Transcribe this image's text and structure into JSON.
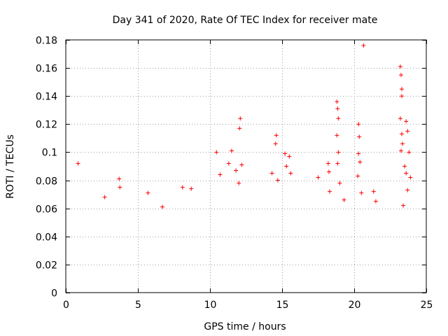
{
  "chart_data": {
    "type": "scatter",
    "title": "Day 341 of 2020, Rate Of TEC Index for receiver mate",
    "xlabel": "GPS time / hours",
    "ylabel": "ROTI / TECUs",
    "xlim": [
      0,
      25
    ],
    "ylim": [
      0,
      0.18
    ],
    "xticks": [
      0,
      5,
      10,
      15,
      20,
      25
    ],
    "xtick_labels": [
      "0",
      "5",
      "10",
      "15",
      "20",
      "25"
    ],
    "yticks": [
      0,
      0.02,
      0.04,
      0.06,
      0.08,
      0.1,
      0.12,
      0.14,
      0.16,
      0.18
    ],
    "ytick_labels": [
      "0",
      "0.02",
      "0.04",
      "0.06",
      "0.08",
      "0.1",
      "0.12",
      "0.14",
      "0.16",
      "0.18"
    ],
    "grid": true,
    "marker": "+",
    "color": "#ff0000",
    "series": [
      {
        "points": [
          [
            0.85,
            0.092
          ],
          [
            2.7,
            0.068
          ],
          [
            3.7,
            0.081
          ],
          [
            3.75,
            0.075
          ],
          [
            5.7,
            0.071
          ],
          [
            6.7,
            0.061
          ],
          [
            8.1,
            0.075
          ],
          [
            8.7,
            0.074
          ],
          [
            10.45,
            0.1
          ],
          [
            10.7,
            0.084
          ],
          [
            11.5,
            0.101
          ],
          [
            11.3,
            0.092
          ],
          [
            11.8,
            0.087
          ],
          [
            12.1,
            0.124
          ],
          [
            12.05,
            0.117
          ],
          [
            12.2,
            0.091
          ],
          [
            12.0,
            0.078
          ],
          [
            14.3,
            0.085
          ],
          [
            14.6,
            0.112
          ],
          [
            14.55,
            0.106
          ],
          [
            14.7,
            0.08
          ],
          [
            15.2,
            0.099
          ],
          [
            15.3,
            0.09
          ],
          [
            15.5,
            0.097
          ],
          [
            15.6,
            0.085
          ],
          [
            17.5,
            0.082
          ],
          [
            18.2,
            0.092
          ],
          [
            18.25,
            0.086
          ],
          [
            18.3,
            0.072
          ],
          [
            18.8,
            0.136
          ],
          [
            18.85,
            0.131
          ],
          [
            18.9,
            0.124
          ],
          [
            18.8,
            0.112
          ],
          [
            18.9,
            0.1
          ],
          [
            18.85,
            0.092
          ],
          [
            19.0,
            0.078
          ],
          [
            19.3,
            0.066
          ],
          [
            20.3,
            0.12
          ],
          [
            20.35,
            0.111
          ],
          [
            20.3,
            0.099
          ],
          [
            20.4,
            0.093
          ],
          [
            20.25,
            0.083
          ],
          [
            20.5,
            0.071
          ],
          [
            20.65,
            0.176
          ],
          [
            21.35,
            0.072
          ],
          [
            21.5,
            0.065
          ],
          [
            23.2,
            0.161
          ],
          [
            23.25,
            0.155
          ],
          [
            23.3,
            0.145
          ],
          [
            23.3,
            0.14
          ],
          [
            23.2,
            0.124
          ],
          [
            23.3,
            0.113
          ],
          [
            23.35,
            0.106
          ],
          [
            23.25,
            0.101
          ],
          [
            23.6,
            0.122
          ],
          [
            23.7,
            0.115
          ],
          [
            23.8,
            0.1
          ],
          [
            23.5,
            0.09
          ],
          [
            23.6,
            0.085
          ],
          [
            23.9,
            0.082
          ],
          [
            23.4,
            0.062
          ],
          [
            23.7,
            0.073
          ]
        ]
      }
    ]
  }
}
